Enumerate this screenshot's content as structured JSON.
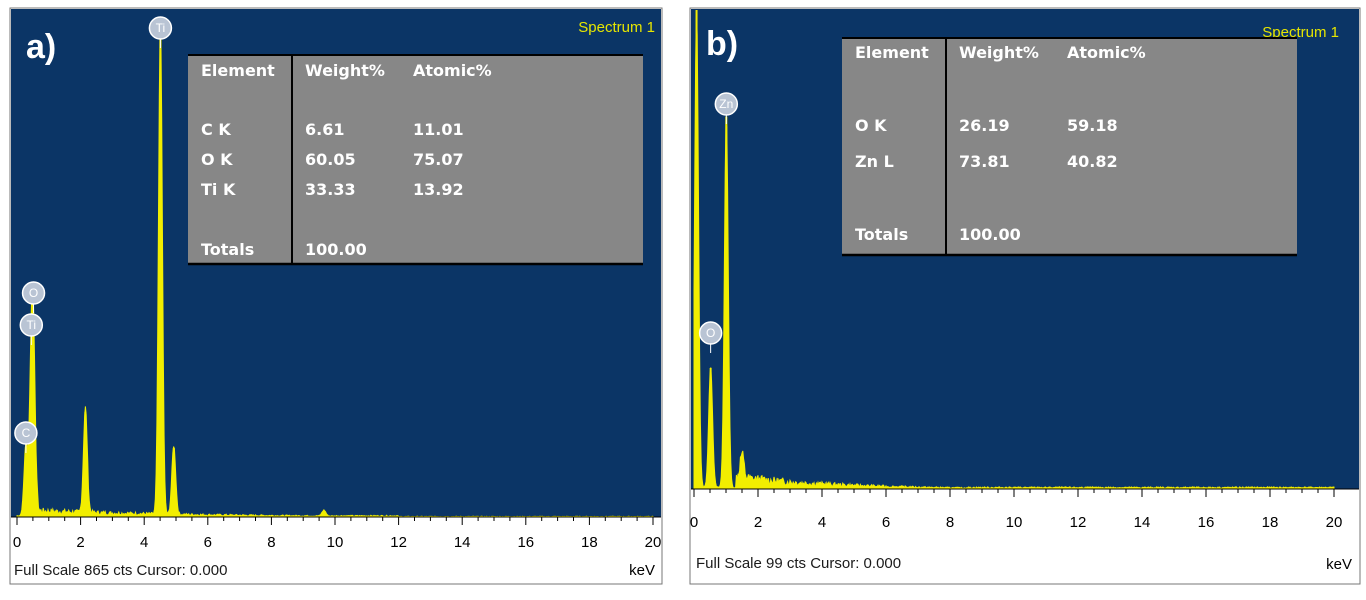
{
  "chart_data": [
    {
      "type": "bar",
      "panel_label": "a)",
      "spectrum_label": "Spectrum 1",
      "status_text": "Full Scale 865 cts Cursor: 0.000",
      "xunit": "keV",
      "xlim": [
        0,
        20
      ],
      "xticks": [
        "0",
        "2",
        "4",
        "6",
        "8",
        "10",
        "12",
        "14",
        "16",
        "18",
        "20"
      ],
      "ylim": [
        0,
        865
      ],
      "grid": false,
      "peaks": [
        {
          "element": "C",
          "x": 0.28,
          "y": 120
        },
        {
          "element": "O",
          "x": 0.52,
          "y": 245
        },
        {
          "element": "Ti",
          "x": 0.45,
          "y": 225
        },
        {
          "element": "",
          "x": 2.15,
          "y": 180
        },
        {
          "element": "Ti",
          "x": 4.51,
          "y": 845
        },
        {
          "element": "",
          "x": 4.93,
          "y": 118
        },
        {
          "element": "",
          "x": 9.65,
          "y": 10
        }
      ],
      "table": {
        "headers": [
          "Element",
          "Weight%",
          "Atomic%"
        ],
        "rows": [
          [
            "C K",
            "6.61",
            "11.01"
          ],
          [
            "O K",
            "60.05",
            "75.07"
          ],
          [
            "Ti K",
            "33.33",
            "13.92"
          ]
        ],
        "totals_label": "Totals",
        "totals_value": "100.00"
      }
    },
    {
      "type": "bar",
      "panel_label": "b)",
      "spectrum_label": "Spectrum 1",
      "status_text": "Full Scale 99 cts Cursor: 0.000",
      "xunit": "keV",
      "xlim": [
        0,
        20
      ],
      "xticks": [
        "0",
        "2",
        "4",
        "6",
        "8",
        "10",
        "12",
        "14",
        "16",
        "18",
        "20"
      ],
      "ylim": [
        0,
        99
      ],
      "grid": false,
      "peaks": [
        {
          "element": "",
          "x": 0.08,
          "y": 99
        },
        {
          "element": "O",
          "x": 0.52,
          "y": 25
        },
        {
          "element": "Zn",
          "x": 1.01,
          "y": 77
        },
        {
          "element": "",
          "x": 1.5,
          "y": 5
        }
      ],
      "table": {
        "headers": [
          "Element",
          "Weight%",
          "Atomic%"
        ],
        "rows": [
          [
            "O K",
            "26.19",
            "59.18"
          ],
          [
            "Zn L",
            "73.81",
            "40.82"
          ]
        ],
        "totals_label": "Totals",
        "totals_value": "100.00"
      }
    }
  ],
  "colors": {
    "plot_bg": "#0b3566",
    "spectrum": "#f2ee00",
    "table_bg": "#878787",
    "badge": "#b9c4d4",
    "frame": "#777777"
  }
}
